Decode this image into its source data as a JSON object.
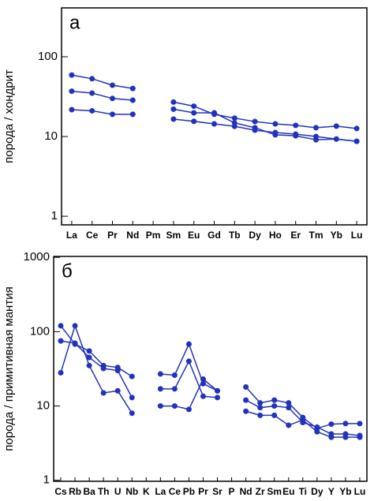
{
  "chart_data": [
    {
      "type": "line",
      "annotation": "а",
      "ylabel": "порода / хондрит",
      "log_scale": true,
      "categories": [
        "La",
        "Ce",
        "Pr",
        "Nd",
        "Pm",
        "Sm",
        "Eu",
        "Gd",
        "Tb",
        "Dy",
        "Ho",
        "Er",
        "Tm",
        "Yb",
        "Lu"
      ],
      "ylim": [
        0.78,
        410
      ],
      "yticks": [
        1,
        10,
        100
      ],
      "series": [
        {
          "color": "#2233bb",
          "values": [
            59,
            53,
            44,
            40,
            null,
            27,
            24,
            19,
            17,
            15.4,
            14.4,
            13.8,
            12.9,
            13.5,
            12.6
          ]
        },
        {
          "color": "#2233bb",
          "values": [
            37,
            35,
            30,
            28.5,
            null,
            22,
            19.8,
            19.8,
            14.8,
            12.9,
            10.5,
            10.2,
            9.1,
            9.3,
            8.7
          ]
        },
        {
          "color": "#2233bb",
          "values": [
            21.7,
            21,
            19,
            19,
            null,
            16.5,
            15.5,
            14.4,
            13.4,
            12,
            11.2,
            10.7,
            10,
            9.3,
            8.7
          ]
        }
      ]
    },
    {
      "type": "line",
      "annotation": "б",
      "ylabel": "порода / примитивная мантия",
      "log_scale": true,
      "categories": [
        "Cs",
        "Rb",
        "Ba",
        "Th",
        "U",
        "Nb",
        "K",
        "La",
        "Ce",
        "Pb",
        "Pr",
        "Sr",
        "P",
        "Nd",
        "Zr",
        "Sm",
        "Eu",
        "Ti",
        "Dy",
        "Y",
        "Yb",
        "Lu"
      ],
      "ylim": [
        0.97,
        1030
      ],
      "yticks": [
        1,
        10,
        100,
        1000
      ],
      "series": [
        {
          "color": "#2233bb",
          "values": [
            120,
            68,
            55,
            35,
            33,
            25,
            null,
            27,
            26,
            68,
            20,
            16,
            null,
            18,
            11,
            12,
            11,
            7,
            5,
            5.7,
            5.8,
            5.8
          ]
        },
        {
          "color": "#2233bb",
          "values": [
            75,
            70,
            45,
            32,
            30,
            13,
            null,
            17,
            17,
            40,
            13.5,
            13,
            null,
            12,
            9.5,
            10,
            9.5,
            6,
            5.2,
            4.2,
            4.2,
            4
          ]
        },
        {
          "color": "#2233bb",
          "values": [
            28,
            120,
            35,
            15,
            16,
            8,
            null,
            10,
            10,
            9,
            23,
            16,
            null,
            8.5,
            7.5,
            7.5,
            5.5,
            6.5,
            4.5,
            3.8,
            3.8,
            3.8
          ]
        }
      ]
    }
  ]
}
